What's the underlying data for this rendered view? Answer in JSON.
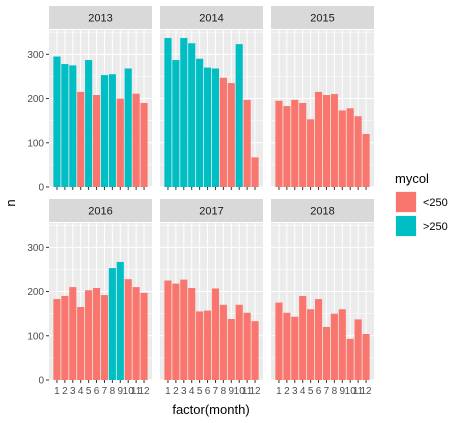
{
  "chart_data": {
    "type": "bar",
    "facet_by": "year",
    "facets": [
      {
        "label": "2013",
        "values": [
          295,
          278,
          275,
          215,
          287,
          208,
          253,
          255,
          200,
          268,
          211,
          190
        ],
        "groups": [
          ">250",
          ">250",
          ">250",
          "<250",
          ">250",
          "<250",
          ">250",
          ">250",
          "<250",
          ">250",
          "<250",
          "<250"
        ]
      },
      {
        "label": "2014",
        "values": [
          337,
          287,
          337,
          325,
          290,
          270,
          268,
          247,
          235,
          323,
          197,
          67
        ],
        "groups": [
          ">250",
          ">250",
          ">250",
          ">250",
          ">250",
          ">250",
          ">250",
          "<250",
          "<250",
          ">250",
          "<250",
          "<250"
        ]
      },
      {
        "label": "2015",
        "values": [
          195,
          183,
          197,
          190,
          153,
          215,
          208,
          210,
          173,
          178,
          160,
          120
        ],
        "groups": [
          "<250",
          "<250",
          "<250",
          "<250",
          "<250",
          "<250",
          "<250",
          "<250",
          "<250",
          "<250",
          "<250",
          "<250"
        ]
      },
      {
        "label": "2016",
        "values": [
          183,
          190,
          210,
          165,
          203,
          208,
          192,
          253,
          267,
          228,
          210,
          197
        ],
        "groups": [
          "<250",
          "<250",
          "<250",
          "<250",
          "<250",
          "<250",
          "<250",
          ">250",
          ">250",
          "<250",
          "<250",
          "<250"
        ]
      },
      {
        "label": "2017",
        "values": [
          225,
          218,
          227,
          208,
          155,
          157,
          207,
          170,
          138,
          170,
          152,
          133
        ],
        "groups": [
          "<250",
          "<250",
          "<250",
          "<250",
          "<250",
          "<250",
          "<250",
          "<250",
          "<250",
          "<250",
          "<250",
          "<250"
        ]
      },
      {
        "label": "2018",
        "values": [
          175,
          152,
          143,
          190,
          160,
          183,
          120,
          150,
          160,
          93,
          137,
          104
        ],
        "groups": [
          "<250",
          "<250",
          "<250",
          "<250",
          "<250",
          "<250",
          "<250",
          "<250",
          "<250",
          "<250",
          "<250",
          "<250"
        ]
      }
    ],
    "x_ticks": [
      "1",
      "2",
      "3",
      "4",
      "5",
      "6",
      "7",
      "8",
      "9",
      "10",
      "11",
      "12"
    ],
    "y_ticks": [
      0,
      100,
      200,
      300
    ],
    "ylim": [
      0,
      355
    ],
    "xlabel": "factor(month)",
    "ylabel": "n",
    "legend": {
      "title": "mycol",
      "position": "right",
      "items": [
        {
          "label": "<250",
          "color": "#f8766d"
        },
        {
          "label": ">250",
          "color": "#00bfc4"
        }
      ]
    },
    "grid": true,
    "colors": {
      "panel": "#ebebeb",
      "strip": "#d9d9d9",
      "grid": "#ffffff"
    }
  }
}
